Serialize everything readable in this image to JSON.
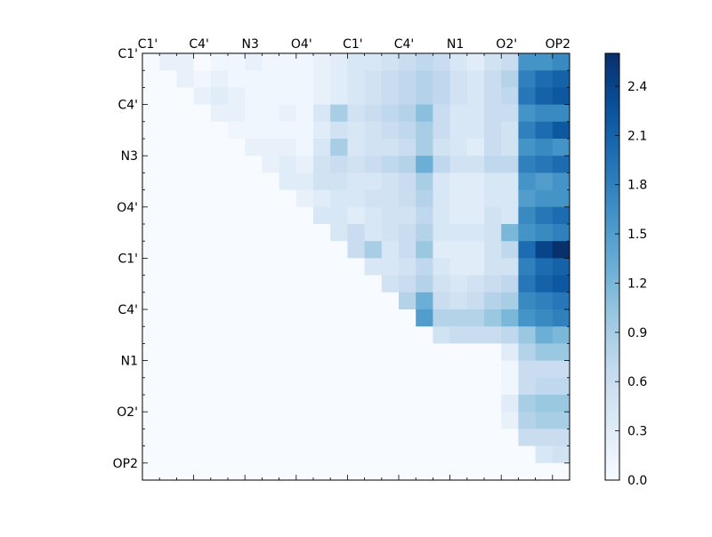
{
  "chart_data": {
    "type": "heatmap",
    "title": "",
    "xlabel": "",
    "ylabel": "",
    "n": 25,
    "row_labels": [
      "C1'",
      "C4'",
      "N3",
      "O4'",
      "C1'",
      "C4'",
      "N1",
      "O2'",
      "OP2"
    ],
    "col_labels": [
      "C1'",
      "C4'",
      "N3",
      "O4'",
      "C1'",
      "C4'",
      "N1",
      "O2'",
      "OP2"
    ],
    "label_every": 3,
    "colormap": "Blues",
    "vmin": 0.0,
    "vmax": 2.6,
    "colorbar_ticks": [
      "0.0",
      "0.3",
      "0.6",
      "0.9",
      "1.2",
      "1.5",
      "1.8",
      "2.1",
      "2.4"
    ],
    "colorbar_tick_values": [
      0.0,
      0.3,
      0.6,
      0.9,
      1.2,
      1.5,
      1.8,
      2.1,
      2.4
    ],
    "values": [
      [
        0.0,
        0.2,
        0.2,
        0.0,
        0.1,
        0.1,
        0.2,
        0.1,
        0.1,
        0.1,
        0.2,
        0.3,
        0.4,
        0.4,
        0.5,
        0.6,
        0.7,
        0.6,
        0.4,
        0.3,
        0.5,
        0.6,
        1.6,
        1.6,
        1.7
      ],
      [
        0.0,
        0.0,
        0.2,
        0.1,
        0.2,
        0.1,
        0.1,
        0.1,
        0.1,
        0.1,
        0.2,
        0.3,
        0.4,
        0.5,
        0.6,
        0.7,
        0.8,
        0.7,
        0.5,
        0.4,
        0.6,
        0.8,
        1.8,
        2.0,
        2.1
      ],
      [
        0.0,
        0.0,
        0.0,
        0.2,
        0.3,
        0.2,
        0.1,
        0.1,
        0.1,
        0.1,
        0.2,
        0.3,
        0.4,
        0.5,
        0.6,
        0.7,
        0.8,
        0.7,
        0.5,
        0.4,
        0.6,
        0.7,
        1.9,
        2.1,
        2.2
      ],
      [
        0.0,
        0.0,
        0.0,
        0.0,
        0.2,
        0.2,
        0.1,
        0.1,
        0.2,
        0.1,
        0.4,
        0.9,
        0.5,
        0.6,
        0.7,
        0.8,
        1.1,
        0.6,
        0.4,
        0.4,
        0.6,
        0.6,
        1.6,
        1.7,
        1.7
      ],
      [
        0.0,
        0.0,
        0.0,
        0.0,
        0.0,
        0.1,
        0.1,
        0.1,
        0.1,
        0.1,
        0.3,
        0.5,
        0.4,
        0.5,
        0.6,
        0.7,
        0.9,
        0.6,
        0.4,
        0.4,
        0.6,
        0.5,
        1.8,
        2.0,
        2.2
      ],
      [
        0.0,
        0.0,
        0.0,
        0.0,
        0.0,
        0.0,
        0.2,
        0.2,
        0.2,
        0.1,
        0.4,
        0.9,
        0.4,
        0.5,
        0.5,
        0.6,
        0.9,
        0.5,
        0.4,
        0.3,
        0.6,
        0.5,
        1.6,
        1.7,
        1.6
      ],
      [
        0.0,
        0.0,
        0.0,
        0.0,
        0.0,
        0.0,
        0.0,
        0.2,
        0.3,
        0.2,
        0.5,
        0.6,
        0.5,
        0.6,
        0.7,
        0.8,
        1.3,
        0.7,
        0.5,
        0.5,
        0.7,
        0.7,
        1.8,
        1.9,
        2.0
      ],
      [
        0.0,
        0.0,
        0.0,
        0.0,
        0.0,
        0.0,
        0.0,
        0.0,
        0.3,
        0.3,
        0.5,
        0.5,
        0.4,
        0.4,
        0.5,
        0.6,
        0.9,
        0.4,
        0.3,
        0.3,
        0.4,
        0.4,
        1.6,
        1.5,
        1.6
      ],
      [
        0.0,
        0.0,
        0.0,
        0.0,
        0.0,
        0.0,
        0.0,
        0.0,
        0.0,
        0.2,
        0.3,
        0.4,
        0.4,
        0.5,
        0.5,
        0.6,
        0.8,
        0.4,
        0.3,
        0.3,
        0.4,
        0.4,
        1.5,
        1.6,
        1.6
      ],
      [
        0.0,
        0.0,
        0.0,
        0.0,
        0.0,
        0.0,
        0.0,
        0.0,
        0.0,
        0.0,
        0.4,
        0.4,
        0.3,
        0.4,
        0.5,
        0.5,
        0.7,
        0.4,
        0.3,
        0.3,
        0.5,
        0.4,
        1.7,
        1.9,
        2.0
      ],
      [
        0.0,
        0.0,
        0.0,
        0.0,
        0.0,
        0.0,
        0.0,
        0.0,
        0.0,
        0.0,
        0.0,
        0.4,
        0.6,
        0.4,
        0.5,
        0.6,
        0.8,
        0.4,
        0.4,
        0.4,
        0.5,
        1.2,
        1.6,
        1.7,
        1.8
      ],
      [
        0.0,
        0.0,
        0.0,
        0.0,
        0.0,
        0.0,
        0.0,
        0.0,
        0.0,
        0.0,
        0.0,
        0.0,
        0.6,
        0.9,
        0.4,
        0.6,
        1.0,
        0.3,
        0.3,
        0.3,
        0.5,
        0.7,
        2.0,
        2.4,
        2.6
      ],
      [
        0.0,
        0.0,
        0.0,
        0.0,
        0.0,
        0.0,
        0.0,
        0.0,
        0.0,
        0.0,
        0.0,
        0.0,
        0.0,
        0.4,
        0.4,
        0.5,
        0.7,
        0.4,
        0.3,
        0.3,
        0.5,
        0.5,
        1.8,
        2.0,
        2.1
      ],
      [
        0.0,
        0.0,
        0.0,
        0.0,
        0.0,
        0.0,
        0.0,
        0.0,
        0.0,
        0.0,
        0.0,
        0.0,
        0.0,
        0.0,
        0.5,
        0.6,
        0.8,
        0.5,
        0.4,
        0.5,
        0.6,
        0.7,
        1.9,
        2.1,
        2.2
      ],
      [
        0.0,
        0.0,
        0.0,
        0.0,
        0.0,
        0.0,
        0.0,
        0.0,
        0.0,
        0.0,
        0.0,
        0.0,
        0.0,
        0.0,
        0.0,
        0.8,
        1.3,
        0.6,
        0.5,
        0.6,
        0.8,
        0.9,
        1.7,
        1.8,
        1.9
      ],
      [
        0.0,
        0.0,
        0.0,
        0.0,
        0.0,
        0.0,
        0.0,
        0.0,
        0.0,
        0.0,
        0.0,
        0.0,
        0.0,
        0.0,
        0.0,
        0.0,
        1.5,
        0.8,
        0.8,
        0.8,
        1.0,
        1.2,
        1.6,
        1.7,
        1.8
      ],
      [
        0.0,
        0.0,
        0.0,
        0.0,
        0.0,
        0.0,
        0.0,
        0.0,
        0.0,
        0.0,
        0.0,
        0.0,
        0.0,
        0.0,
        0.0,
        0.0,
        0.0,
        0.5,
        0.6,
        0.6,
        0.6,
        0.7,
        1.0,
        1.3,
        1.2
      ],
      [
        0.0,
        0.0,
        0.0,
        0.0,
        0.0,
        0.0,
        0.0,
        0.0,
        0.0,
        0.0,
        0.0,
        0.0,
        0.0,
        0.0,
        0.0,
        0.0,
        0.0,
        0.0,
        0.0,
        0.0,
        0.0,
        0.3,
        0.8,
        1.0,
        1.0
      ],
      [
        0.0,
        0.0,
        0.0,
        0.0,
        0.0,
        0.0,
        0.0,
        0.0,
        0.0,
        0.0,
        0.0,
        0.0,
        0.0,
        0.0,
        0.0,
        0.0,
        0.0,
        0.0,
        0.0,
        0.0,
        0.0,
        0.1,
        0.6,
        0.6,
        0.6
      ],
      [
        0.0,
        0.0,
        0.0,
        0.0,
        0.0,
        0.0,
        0.0,
        0.0,
        0.0,
        0.0,
        0.0,
        0.0,
        0.0,
        0.0,
        0.0,
        0.0,
        0.0,
        0.0,
        0.0,
        0.0,
        0.0,
        0.1,
        0.6,
        0.7,
        0.7
      ],
      [
        0.0,
        0.0,
        0.0,
        0.0,
        0.0,
        0.0,
        0.0,
        0.0,
        0.0,
        0.0,
        0.0,
        0.0,
        0.0,
        0.0,
        0.0,
        0.0,
        0.0,
        0.0,
        0.0,
        0.0,
        0.0,
        0.3,
        0.9,
        1.0,
        1.0
      ],
      [
        0.0,
        0.0,
        0.0,
        0.0,
        0.0,
        0.0,
        0.0,
        0.0,
        0.0,
        0.0,
        0.0,
        0.0,
        0.0,
        0.0,
        0.0,
        0.0,
        0.0,
        0.0,
        0.0,
        0.0,
        0.0,
        0.2,
        0.8,
        0.9,
        0.9
      ],
      [
        0.0,
        0.0,
        0.0,
        0.0,
        0.0,
        0.0,
        0.0,
        0.0,
        0.0,
        0.0,
        0.0,
        0.0,
        0.0,
        0.0,
        0.0,
        0.0,
        0.0,
        0.0,
        0.0,
        0.0,
        0.0,
        0.0,
        0.6,
        0.6,
        0.6
      ],
      [
        0.0,
        0.0,
        0.0,
        0.0,
        0.0,
        0.0,
        0.0,
        0.0,
        0.0,
        0.0,
        0.0,
        0.0,
        0.0,
        0.0,
        0.0,
        0.0,
        0.0,
        0.0,
        0.0,
        0.0,
        0.0,
        0.0,
        0.0,
        0.4,
        0.5
      ],
      [
        0.0,
        0.0,
        0.0,
        0.0,
        0.0,
        0.0,
        0.0,
        0.0,
        0.0,
        0.0,
        0.0,
        0.0,
        0.0,
        0.0,
        0.0,
        0.0,
        0.0,
        0.0,
        0.0,
        0.0,
        0.0,
        0.0,
        0.0,
        0.0,
        0.0
      ]
    ]
  }
}
